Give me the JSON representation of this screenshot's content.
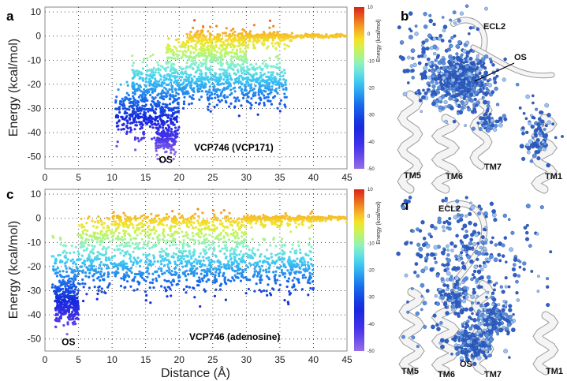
{
  "chart_data": [
    {
      "panel": "a",
      "type": "scatter",
      "title": "",
      "xlabel": "",
      "ylabel": "Energy (kcal/mol)",
      "xlim": [
        0,
        45
      ],
      "ylim": [
        -55,
        12
      ],
      "xticks": [
        "0",
        "5",
        "10",
        "15",
        "20",
        "25",
        "30",
        "35",
        "40",
        "45"
      ],
      "yticks": [
        "10",
        "0",
        "-10",
        "-20",
        "-30",
        "-40",
        "-50"
      ],
      "grid": true,
      "annotation_os": "OS",
      "annotation_os_at": [
        18,
        -50
      ],
      "legend": "VCP746 (VCP171)",
      "colorbar": {
        "label": "Energy (kcal/mol)",
        "range": [
          -50,
          10
        ],
        "ticks": [
          "10",
          "0",
          "-10",
          "-20",
          "-30",
          "-40",
          "-50"
        ]
      },
      "point_clusters": [
        {
          "x_range": [
            10.5,
            20
          ],
          "y_center": -32,
          "y_spread": 9,
          "count": 420
        },
        {
          "x_range": [
            16.5,
            19.5
          ],
          "y_center": -43,
          "y_spread": 5,
          "count": 160
        },
        {
          "x_range": [
            13,
            36
          ],
          "y_center": -19,
          "y_spread": 9,
          "count": 900
        },
        {
          "x_range": [
            18,
            30
          ],
          "y_center": -7,
          "y_spread": 6,
          "count": 300
        },
        {
          "x_range": [
            21,
            37
          ],
          "y_center": -1,
          "y_spread": 3.5,
          "count": 260
        },
        {
          "x_range": [
            30,
            45
          ],
          "y_center": 0,
          "y_spread": 0.8,
          "count": 220
        }
      ]
    },
    {
      "panel": "c",
      "type": "scatter",
      "title": "",
      "xlabel": "Distance (Å)",
      "ylabel": "Energy (kcal/mol)",
      "xlim": [
        0,
        45
      ],
      "ylim": [
        -55,
        12
      ],
      "xticks": [
        "0",
        "5",
        "10",
        "15",
        "20",
        "25",
        "30",
        "35",
        "40",
        "45"
      ],
      "yticks": [
        "10",
        "0",
        "-10",
        "-20",
        "-30",
        "-40",
        "-50"
      ],
      "grid": true,
      "annotation_os": "OS",
      "annotation_os_at": [
        3.5,
        -50
      ],
      "legend": "VCP746 (adenosine)",
      "colorbar": {
        "label": "Energy (kcal/mol)",
        "range": [
          -50,
          10
        ],
        "ticks": [
          "10",
          "0",
          "-10",
          "-20",
          "-30",
          "-40",
          "-50"
        ]
      },
      "point_clusters": [
        {
          "x_range": [
            1.5,
            5
          ],
          "y_center": -35,
          "y_spread": 8,
          "count": 320
        },
        {
          "x_range": [
            1,
            40
          ],
          "y_center": -20,
          "y_spread": 10,
          "count": 1100
        },
        {
          "x_range": [
            5,
            30
          ],
          "y_center": -7,
          "y_spread": 7,
          "count": 420
        },
        {
          "x_range": [
            10,
            40
          ],
          "y_center": -1,
          "y_spread": 3,
          "count": 280
        },
        {
          "x_range": [
            30,
            45
          ],
          "y_center": 0,
          "y_spread": 0.8,
          "count": 220
        }
      ]
    }
  ],
  "structures": [
    {
      "panel": "b",
      "labels": {
        "ecl2": "ECL2",
        "os": "OS",
        "tm5": "TM5",
        "tm6": "TM6",
        "tm7": "TM7",
        "tm1": "TM1"
      }
    },
    {
      "panel": "d",
      "labels": {
        "ecl2": "ECL2",
        "os": "OS",
        "tm5": "TM5",
        "tm6": "TM6",
        "tm7": "TM7",
        "tm1": "TM1"
      }
    }
  ]
}
